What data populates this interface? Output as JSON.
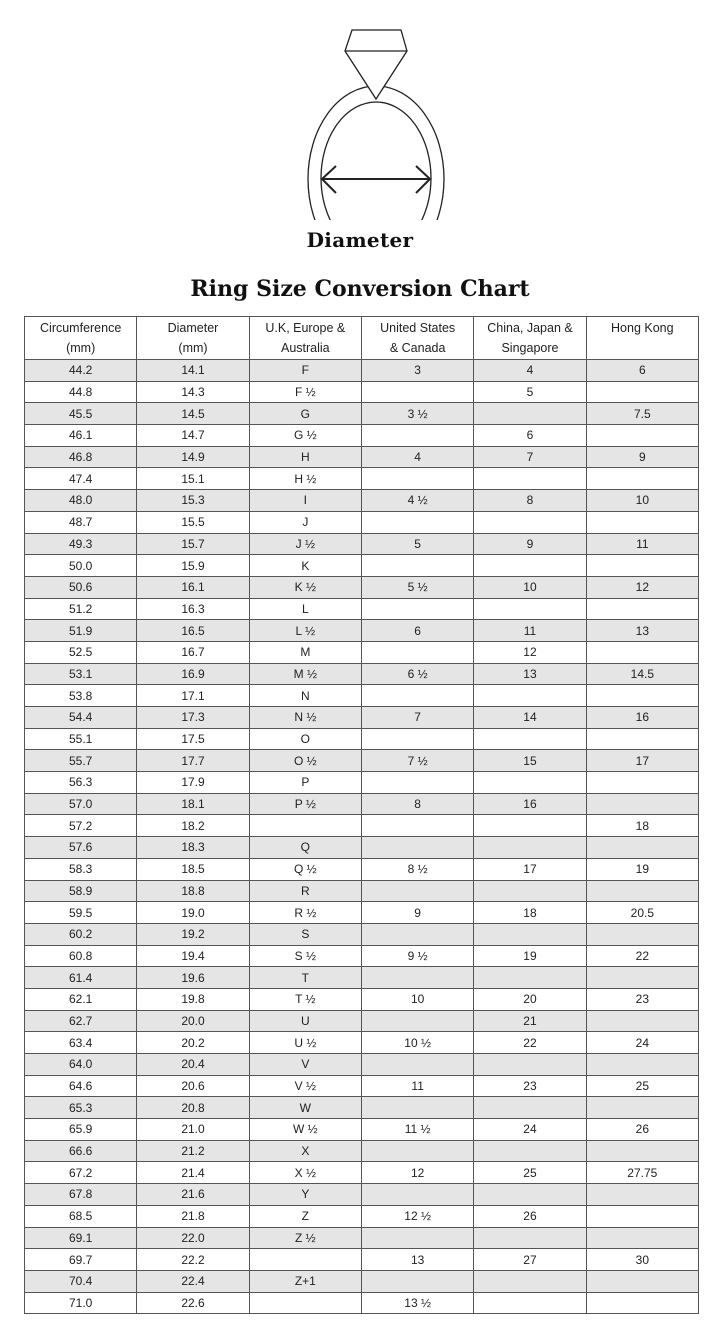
{
  "diagram_label": "Diameter",
  "title": "Ring Size Conversion Chart",
  "colors": {
    "row_shade": "#e5e5e5",
    "border": "#555555",
    "text": "#222222"
  },
  "table": {
    "headers": [
      {
        "line1": "Circumference",
        "line2": "(mm)"
      },
      {
        "line1": "Diameter",
        "line2": "(mm)"
      },
      {
        "line1": "U.K, Europe &",
        "line2": "Australia"
      },
      {
        "line1": "United States",
        "line2": "& Canada"
      },
      {
        "line1": "China, Japan &",
        "line2": "Singapore"
      },
      {
        "line1": "Hong Kong",
        "line2": ""
      }
    ],
    "rows": [
      [
        "44.2",
        "14.1",
        "F",
        "3",
        "4",
        "6"
      ],
      [
        "44.8",
        "14.3",
        "F ½",
        "",
        "5",
        ""
      ],
      [
        "45.5",
        "14.5",
        "G",
        "3 ½",
        "",
        "7.5"
      ],
      [
        "46.1",
        "14.7",
        "G ½",
        "",
        "6",
        ""
      ],
      [
        "46.8",
        "14.9",
        "H",
        "4",
        "7",
        "9"
      ],
      [
        "47.4",
        "15.1",
        "H ½",
        "",
        "",
        ""
      ],
      [
        "48.0",
        "15.3",
        "I",
        "4 ½",
        "8",
        "10"
      ],
      [
        "48.7",
        "15.5",
        "J",
        "",
        "",
        ""
      ],
      [
        "49.3",
        "15.7",
        "J ½",
        "5",
        "9",
        "11"
      ],
      [
        "50.0",
        "15.9",
        "K",
        "",
        "",
        ""
      ],
      [
        "50.6",
        "16.1",
        "K ½",
        "5 ½",
        "10",
        "12"
      ],
      [
        "51.2",
        "16.3",
        "L",
        "",
        "",
        ""
      ],
      [
        "51.9",
        "16.5",
        "L ½",
        "6",
        "11",
        "13"
      ],
      [
        "52.5",
        "16.7",
        "M",
        "",
        "12",
        ""
      ],
      [
        "53.1",
        "16.9",
        "M ½",
        "6 ½",
        "13",
        "14.5"
      ],
      [
        "53.8",
        "17.1",
        "N",
        "",
        "",
        ""
      ],
      [
        "54.4",
        "17.3",
        "N ½",
        "7",
        "14",
        "16"
      ],
      [
        "55.1",
        "17.5",
        "O",
        "",
        "",
        ""
      ],
      [
        "55.7",
        "17.7",
        "O ½",
        "7 ½",
        "15",
        "17"
      ],
      [
        "56.3",
        "17.9",
        "P",
        "",
        "",
        ""
      ],
      [
        "57.0",
        "18.1",
        "P ½",
        "8",
        "16",
        ""
      ],
      [
        "57.2",
        "18.2",
        "",
        "",
        "",
        "18"
      ],
      [
        "57.6",
        "18.3",
        "Q",
        "",
        "",
        ""
      ],
      [
        "58.3",
        "18.5",
        "Q ½",
        "8 ½",
        "17",
        "19"
      ],
      [
        "58.9",
        "18.8",
        "R",
        "",
        "",
        ""
      ],
      [
        "59.5",
        "19.0",
        "R ½",
        "9",
        "18",
        "20.5"
      ],
      [
        "60.2",
        "19.2",
        "S",
        "",
        "",
        ""
      ],
      [
        "60.8",
        "19.4",
        "S ½",
        "9 ½",
        "19",
        "22"
      ],
      [
        "61.4",
        "19.6",
        "T",
        "",
        "",
        ""
      ],
      [
        "62.1",
        "19.8",
        "T ½",
        "10",
        "20",
        "23"
      ],
      [
        "62.7",
        "20.0",
        "U",
        "",
        "21",
        ""
      ],
      [
        "63.4",
        "20.2",
        "U ½",
        "10 ½",
        "22",
        "24"
      ],
      [
        "64.0",
        "20.4",
        "V",
        "",
        "",
        ""
      ],
      [
        "64.6",
        "20.6",
        "V ½",
        "11",
        "23",
        "25"
      ],
      [
        "65.3",
        "20.8",
        "W",
        "",
        "",
        ""
      ],
      [
        "65.9",
        "21.0",
        "W ½",
        "11 ½",
        "24",
        "26"
      ],
      [
        "66.6",
        "21.2",
        "X",
        "",
        "",
        ""
      ],
      [
        "67.2",
        "21.4",
        "X ½",
        "12",
        "25",
        "27.75"
      ],
      [
        "67.8",
        "21.6",
        "Y",
        "",
        "",
        ""
      ],
      [
        "68.5",
        "21.8",
        "Z",
        "12 ½",
        "26",
        ""
      ],
      [
        "69.1",
        "22.0",
        "Z ½",
        "",
        "",
        ""
      ],
      [
        "69.7",
        "22.2",
        "",
        "13",
        "27",
        "30"
      ],
      [
        "70.4",
        "22.4",
        "Z+1",
        "",
        "",
        ""
      ],
      [
        "71.0",
        "22.6",
        "",
        "13 ½",
        "",
        ""
      ]
    ]
  }
}
